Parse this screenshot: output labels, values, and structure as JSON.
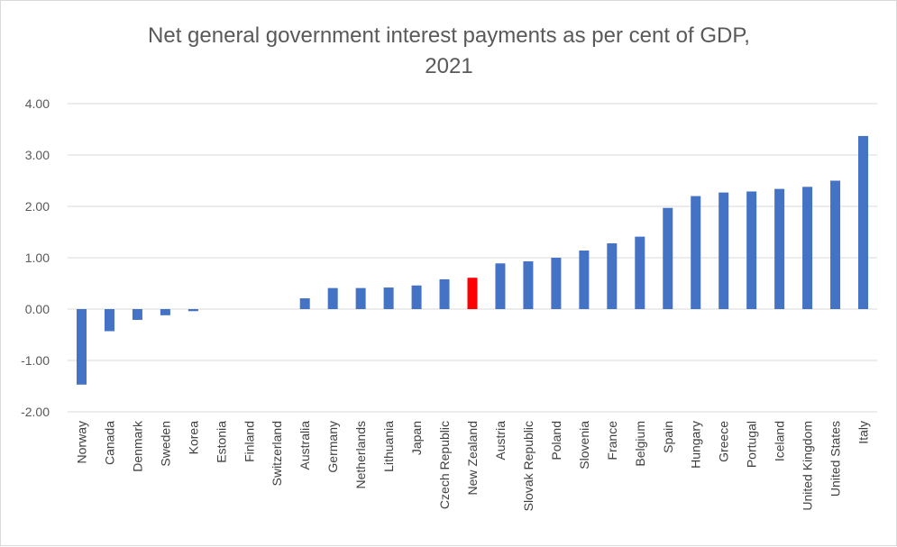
{
  "chart_data": {
    "type": "bar",
    "title": "Net general government interest payments as per cent of GDP, 2021",
    "title_lines": [
      "Net general government interest payments as per cent of GDP,",
      "2021"
    ],
    "xlabel": "",
    "ylabel": "",
    "ylim": [
      -2.0,
      4.0
    ],
    "yticks": [
      4.0,
      3.0,
      2.0,
      1.0,
      0.0,
      -1.0,
      -2.0
    ],
    "ytick_labels": [
      "4.00",
      "3.00",
      "2.00",
      "1.00",
      "0.00",
      "-1.00",
      "-2.00"
    ],
    "grid": true,
    "legend": "none",
    "categories": [
      "Norway",
      "Canada",
      "Denmark",
      "Sweden",
      "Korea",
      "Estonia",
      "Finland",
      "Switzerland",
      "Australia",
      "Germany",
      "Netherlands",
      "Lithuania",
      "Japan",
      "Czech Republic",
      "New Zealand",
      "Austria",
      "Slovak Republic",
      "Poland",
      "Slovenia",
      "France",
      "Belgium",
      "Spain",
      "Hungary",
      "Greece",
      "Portugal",
      "Iceland",
      "United Kingdom",
      "United States",
      "Italy"
    ],
    "values": [
      -1.47,
      -0.43,
      -0.21,
      -0.12,
      -0.04,
      0.0,
      0.0,
      0.0,
      0.21,
      0.41,
      0.41,
      0.42,
      0.46,
      0.58,
      0.61,
      0.89,
      0.93,
      1.0,
      1.14,
      1.28,
      1.41,
      1.97,
      2.2,
      2.27,
      2.29,
      2.34,
      2.38,
      2.5,
      3.37
    ],
    "highlight_category": "New Zealand",
    "colors": {
      "bar": "#4472c4",
      "highlight": "#ff0000",
      "grid": "#d9d9d9",
      "text": "#595959"
    }
  }
}
